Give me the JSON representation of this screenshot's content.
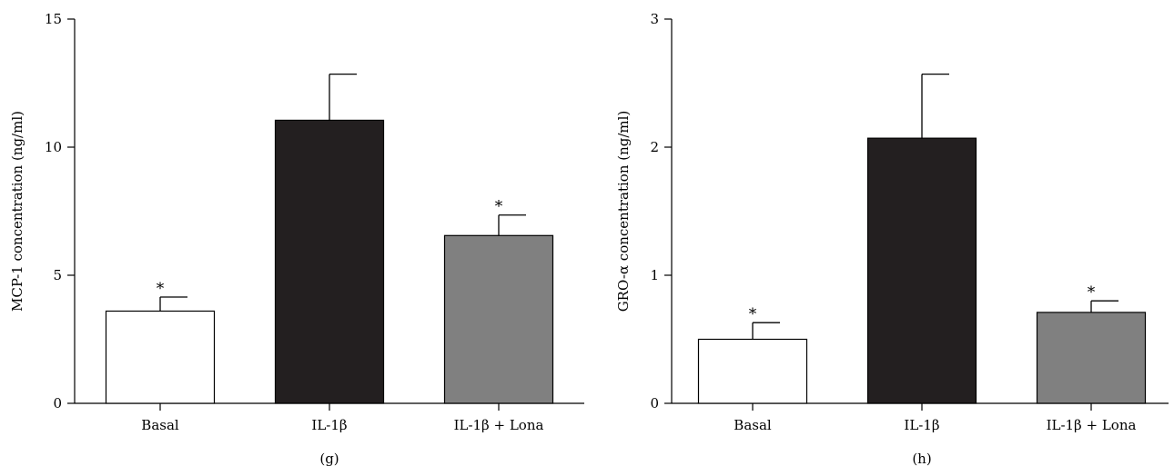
{
  "chart_data": [
    {
      "type": "bar",
      "panel": "(g)",
      "ylabel": "MCP-1 concentration (ng/ml)",
      "ylim": [
        0,
        15
      ],
      "yticks": [
        0,
        5,
        10,
        15
      ],
      "categories": [
        "Basal",
        "IL-1β",
        "IL-1β + Lona"
      ],
      "values": [
        3.6,
        11.05,
        6.55
      ],
      "errors": [
        0.55,
        1.8,
        0.8
      ],
      "significance": [
        "*",
        "",
        "*"
      ],
      "colors": [
        "#ffffff",
        "#231f20",
        "#808080"
      ]
    },
    {
      "type": "bar",
      "panel": "(h)",
      "ylabel": "GRO-α concentration (ng/ml)",
      "ylim": [
        0,
        3
      ],
      "yticks": [
        0,
        1,
        2,
        3
      ],
      "categories": [
        "Basal",
        "IL-1β",
        "IL-1β + Lona"
      ],
      "values": [
        0.5,
        2.07,
        0.71
      ],
      "errors": [
        0.13,
        0.5,
        0.09
      ],
      "significance": [
        "*",
        "",
        "*"
      ],
      "colors": [
        "#ffffff",
        "#231f20",
        "#808080"
      ]
    }
  ]
}
